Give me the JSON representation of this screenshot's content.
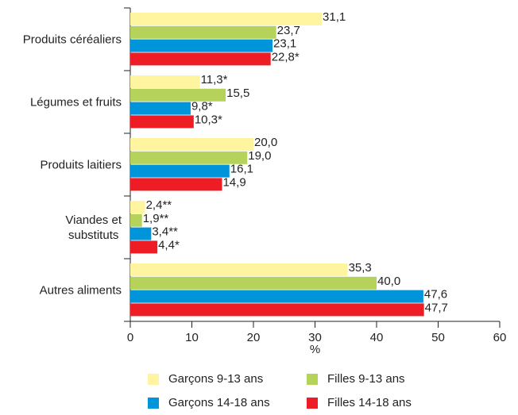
{
  "chart_data": {
    "type": "bar",
    "orientation": "horizontal",
    "categories": [
      "Produits céréaliers",
      "Légumes et fruits",
      "Produits laitiers",
      "Viandes et\nsubstituts",
      "Autres aliments"
    ],
    "series": [
      {
        "name": "Garçons 9-13 ans",
        "color": "#fff5a0",
        "values": [
          31.1,
          11.3,
          20.0,
          2.4,
          35.3
        ],
        "value_labels": [
          "31,1",
          "11,3*",
          "20,0",
          "2,4**",
          "35,3"
        ]
      },
      {
        "name": "Filles 9-13 ans",
        "color": "#b5d35a",
        "values": [
          23.7,
          15.5,
          19.0,
          1.9,
          40.0
        ],
        "value_labels": [
          "23,7",
          "15,5",
          "19,0",
          "1,9**",
          "40,0"
        ]
      },
      {
        "name": "Garçons 14-18 ans",
        "color": "#0094da",
        "values": [
          23.1,
          9.8,
          16.1,
          3.4,
          47.6
        ],
        "value_labels": [
          "23,1",
          "9,8*",
          "16,1",
          "3,4**",
          "47,6"
        ]
      },
      {
        "name": "Filles 14-18 ans",
        "color": "#ee1c25",
        "values": [
          22.8,
          10.3,
          14.9,
          4.4,
          47.7
        ],
        "value_labels": [
          "22,8*",
          "10,3*",
          "14,9",
          "4,4*",
          "47,7"
        ]
      }
    ],
    "xlabel": "%",
    "xlim": [
      0,
      60
    ],
    "xticks": [
      0,
      10,
      20,
      30,
      40,
      50,
      60
    ],
    "legend": "bottom"
  }
}
